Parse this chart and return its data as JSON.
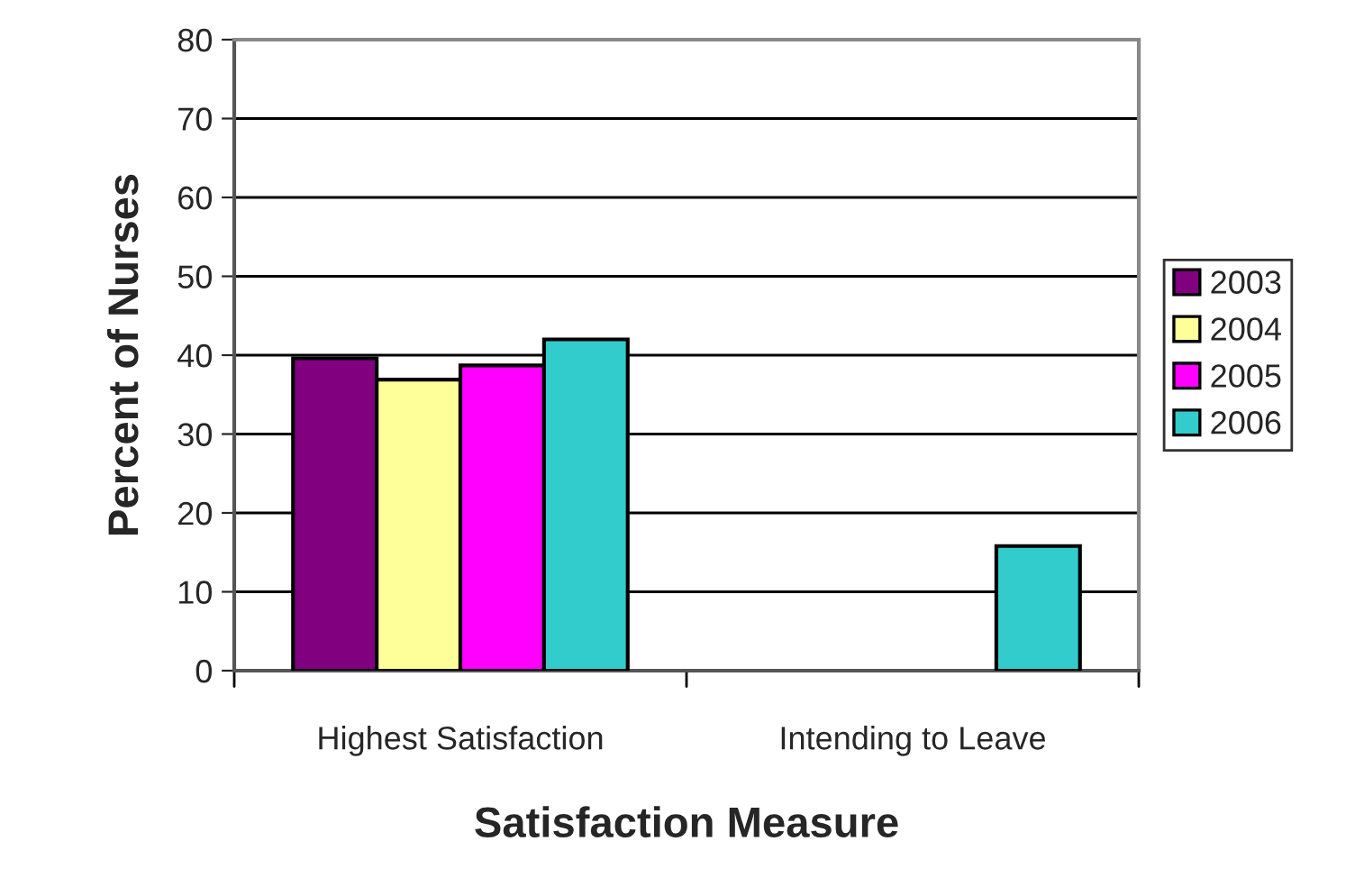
{
  "chart_data": {
    "type": "bar",
    "xlabel": "Satisfaction Measure",
    "ylabel": "Percent of Nurses",
    "categories": [
      "Highest Satisfaction",
      "Intending to Leave"
    ],
    "series": [
      {
        "name": "2003",
        "color": "#800080",
        "values": [
          39.6,
          null
        ]
      },
      {
        "name": "2004",
        "color": "#ffff99",
        "values": [
          36.9,
          null
        ]
      },
      {
        "name": "2005",
        "color": "#ff00ff",
        "values": [
          38.7,
          null
        ]
      },
      {
        "name": "2006",
        "color": "#33cccc",
        "values": [
          42,
          15.8
        ]
      }
    ],
    "ylim": [
      0,
      80
    ],
    "yticks": [
      0,
      10,
      20,
      30,
      40,
      50,
      60,
      70,
      80
    ],
    "grid": "y",
    "legend": "right"
  }
}
